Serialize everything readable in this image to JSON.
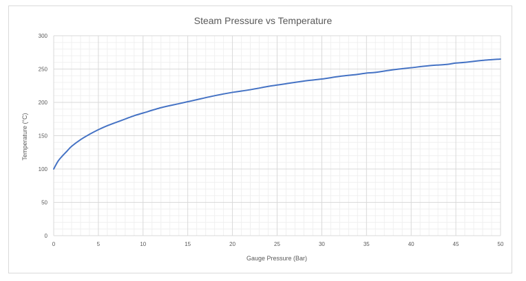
{
  "chart_data": {
    "type": "line",
    "title": "Steam Pressure vs Temperature",
    "xlabel": "Gauge Pressure (Bar)",
    "ylabel": "Temperature (°C)",
    "xlim": [
      0,
      50
    ],
    "ylim": [
      0,
      300
    ],
    "xticks": [
      0,
      5,
      10,
      15,
      20,
      25,
      30,
      35,
      40,
      45,
      50
    ],
    "yticks": [
      0,
      50,
      100,
      150,
      200,
      250,
      300
    ],
    "xtick_labels": [
      "0",
      "5",
      "10",
      "15",
      "20",
      "25",
      "30",
      "35",
      "40",
      "45",
      "50"
    ],
    "ytick_labels": [
      "0",
      "50",
      "100",
      "150",
      "200",
      "250",
      "300"
    ],
    "grid": {
      "major": true,
      "minor": true
    },
    "legend": "none",
    "series": [
      {
        "color": "#4472c4",
        "x": [
          0,
          0.5,
          1,
          1.5,
          2,
          3,
          4,
          5,
          6,
          7,
          8,
          9,
          10,
          12,
          14,
          15,
          16,
          18,
          20,
          22,
          24,
          25,
          26,
          28,
          30,
          32,
          34,
          35,
          36,
          38,
          40,
          42,
          44,
          45,
          46,
          48,
          50
        ],
        "y": [
          100,
          112,
          120,
          127,
          134,
          144,
          152,
          159,
          165,
          170,
          175,
          180,
          184,
          192,
          198,
          201,
          204,
          210,
          215,
          219,
          224,
          226,
          228,
          232,
          235,
          239,
          242,
          244,
          245,
          249,
          252,
          255,
          257,
          259,
          260,
          263,
          265
        ]
      }
    ]
  }
}
